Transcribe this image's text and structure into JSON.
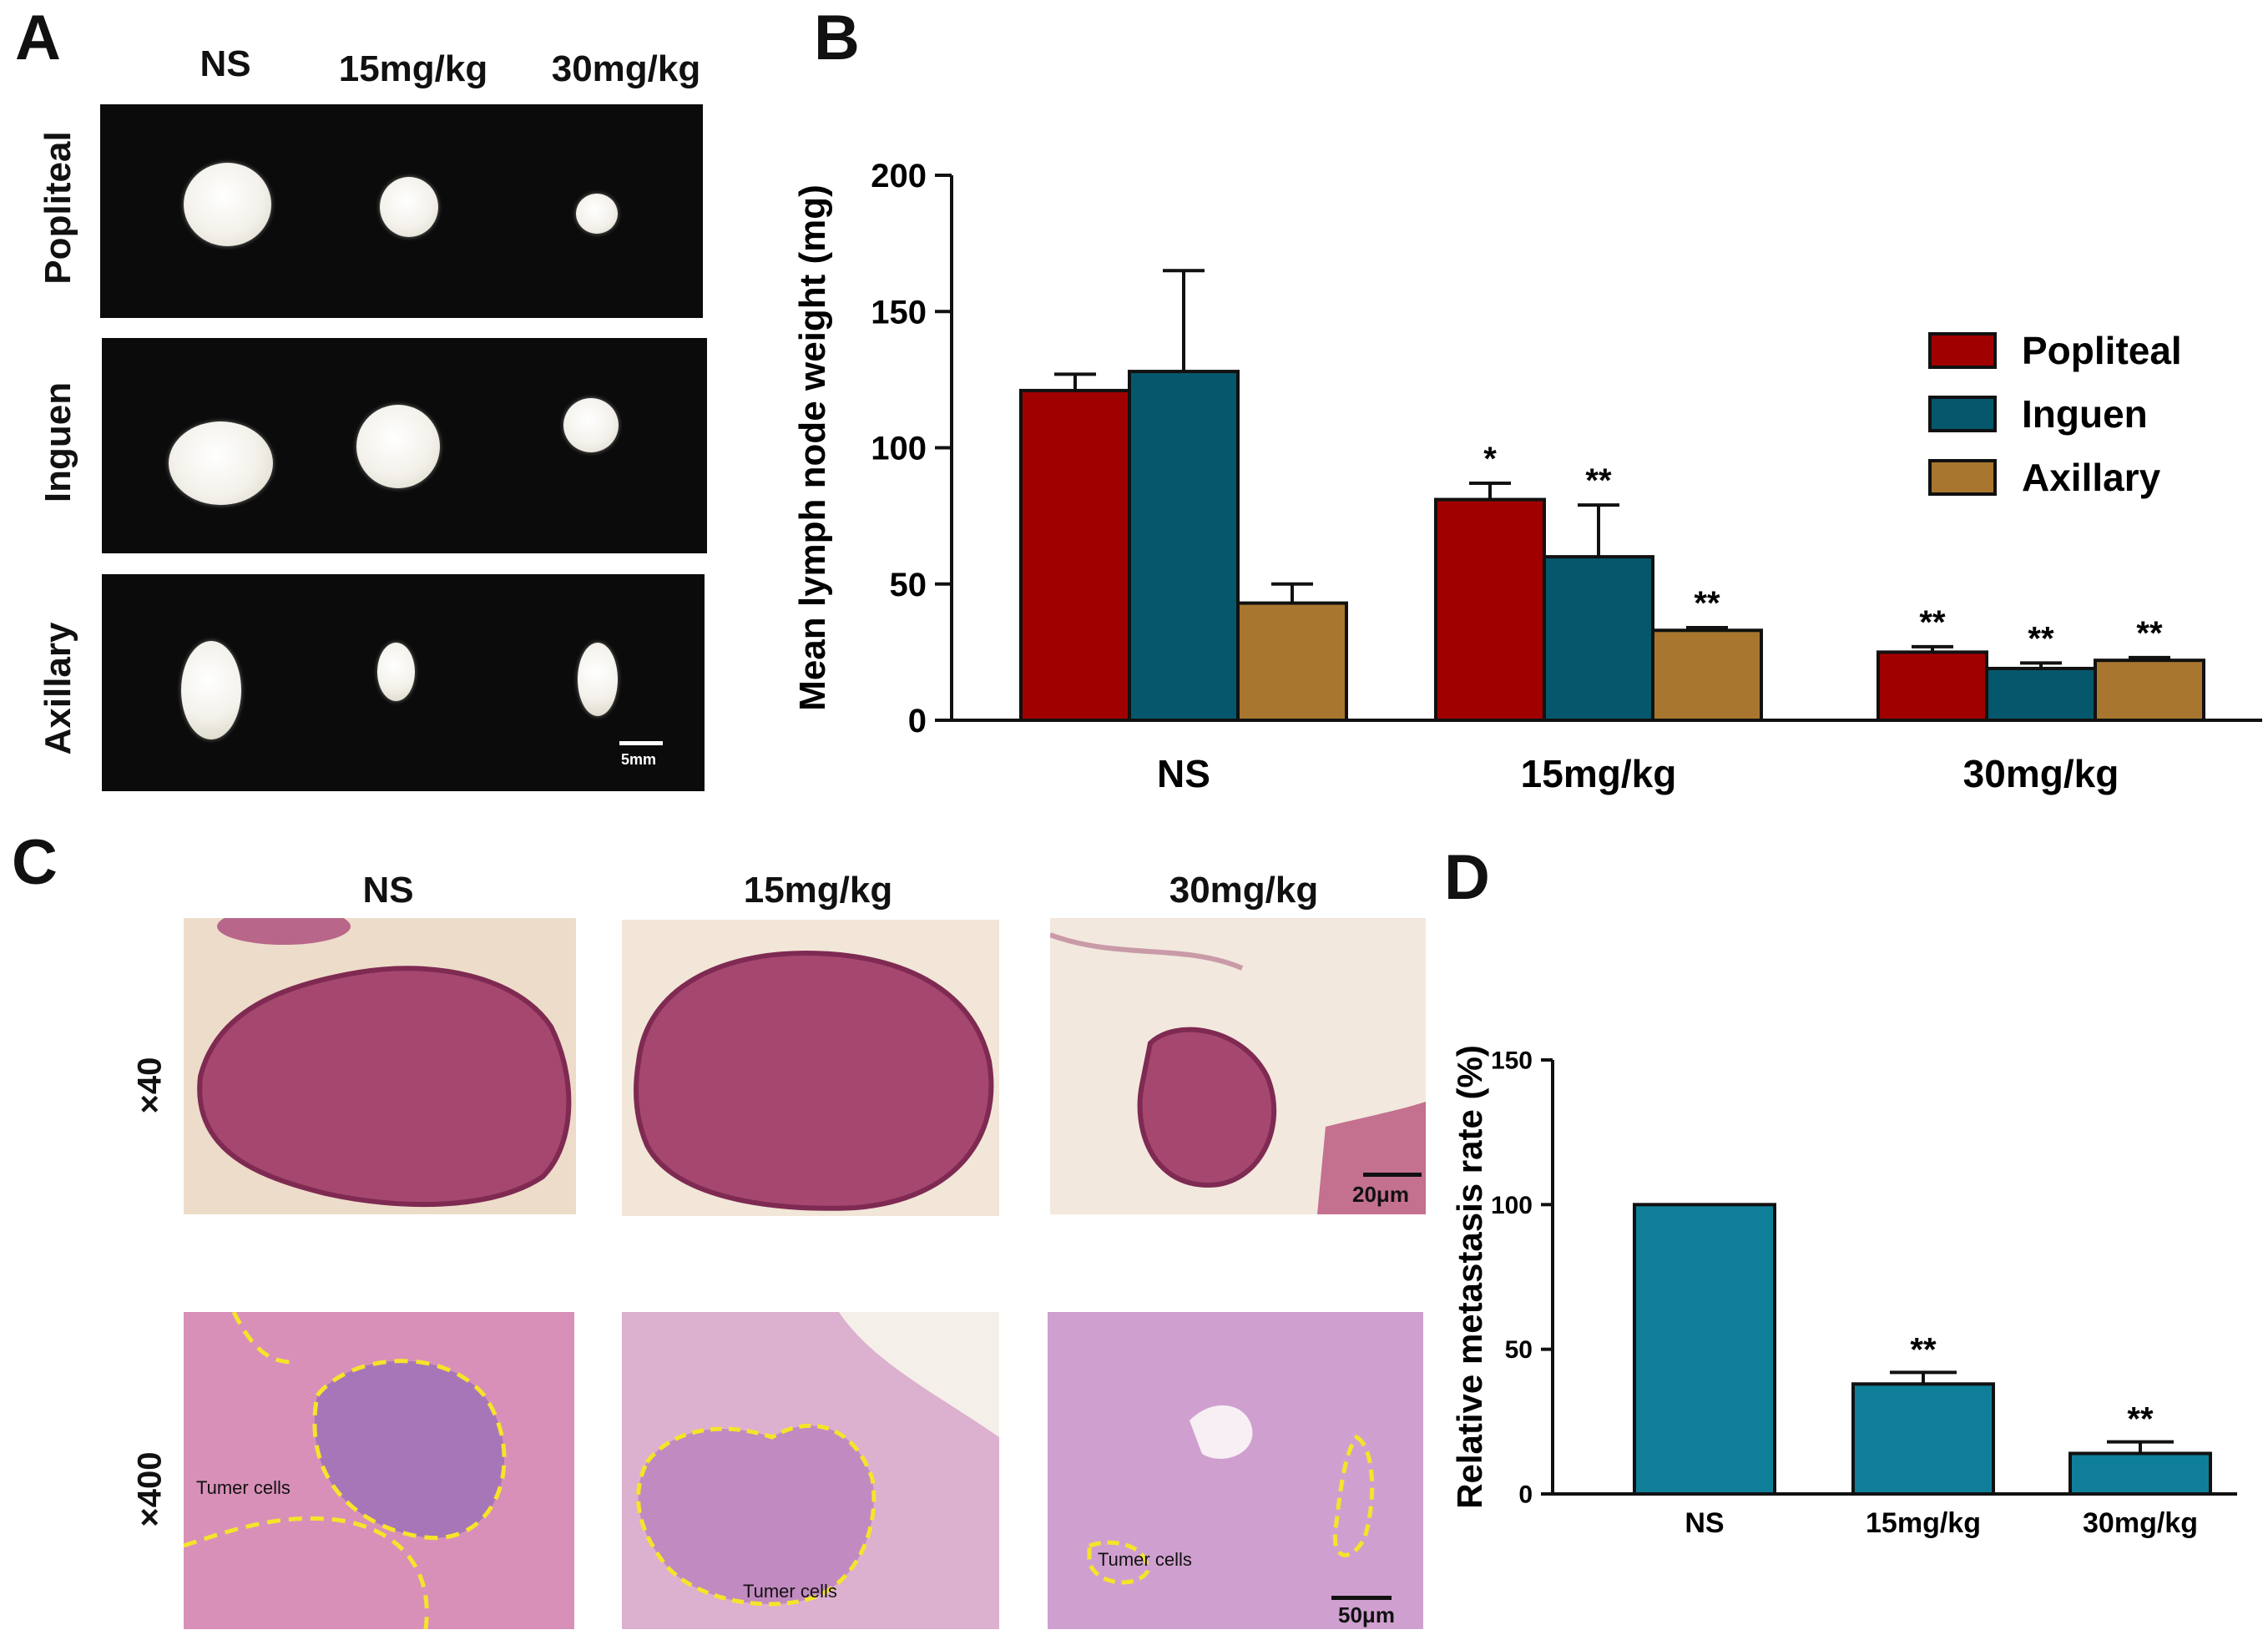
{
  "panels": {
    "a": {
      "letter": "A",
      "columns": [
        "NS",
        "15mg/kg",
        "30mg/kg"
      ],
      "rows": [
        "Popliteal",
        "Inguen",
        "Axillary"
      ],
      "scale_label": "5mm"
    },
    "b": {
      "letter": "B"
    },
    "c": {
      "letter": "C",
      "columns": [
        "NS",
        "15mg/kg",
        "30mg/kg"
      ],
      "rows": [
        "×40",
        "×400"
      ],
      "scale_40": "20μm",
      "scale_400": "50μm",
      "tumor_label": "Tumer cells"
    },
    "d": {
      "letter": "D"
    }
  },
  "colors": {
    "popliteal": "#a10000",
    "inguen": "#05586b",
    "axillary": "#a8762f",
    "metastasis": "#0f7f99",
    "tissue_40": "#a5476f",
    "tissue_400": "#c77fb4",
    "tumor_outline": "#f5e42a"
  },
  "chart_data": [
    {
      "type": "bar",
      "id": "B",
      "categories": [
        "NS",
        "15mg/kg",
        "30mg/kg"
      ],
      "ylabel": "Mean lymph node weight (mg)",
      "ylim": [
        0,
        200
      ],
      "yticks": [
        0,
        50,
        100,
        150,
        200
      ],
      "legend_position": "right",
      "series": [
        {
          "name": "Popliteal",
          "color_key": "popliteal",
          "values": [
            121,
            81,
            25
          ],
          "errors": [
            6,
            6,
            2
          ],
          "sig": [
            "",
            "*",
            "**"
          ]
        },
        {
          "name": "Inguen",
          "color_key": "inguen",
          "values": [
            128,
            60,
            19
          ],
          "errors": [
            37,
            19,
            2
          ],
          "sig": [
            "",
            "**",
            "**"
          ]
        },
        {
          "name": "Axillary",
          "color_key": "axillary",
          "values": [
            43,
            33,
            22
          ],
          "errors": [
            7,
            1,
            1
          ],
          "sig": [
            "",
            "**",
            "**"
          ]
        }
      ]
    },
    {
      "type": "bar",
      "id": "D",
      "categories": [
        "NS",
        "15mg/kg",
        "30mg/kg"
      ],
      "ylabel": "Relative metastasis rate (%)",
      "ylim": [
        0,
        150
      ],
      "yticks": [
        0,
        50,
        100,
        150
      ],
      "series": [
        {
          "color_key": "metastasis",
          "values": [
            100,
            38,
            14
          ],
          "errors": [
            0,
            4,
            4
          ],
          "sig": [
            "",
            "**",
            "**"
          ]
        }
      ]
    }
  ]
}
